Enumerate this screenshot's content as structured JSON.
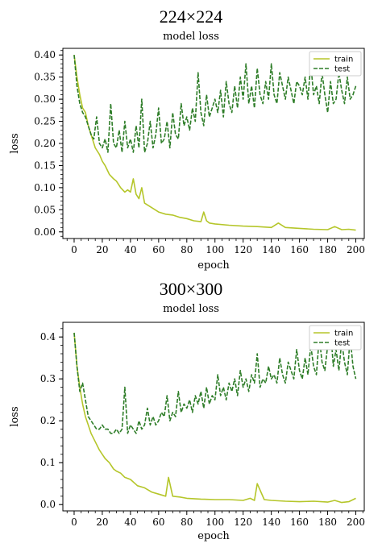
{
  "panels": [
    {
      "heading": "224×224"
    },
    {
      "heading": "300×300"
    }
  ],
  "chart_data": [
    {
      "type": "line",
      "title": "model loss",
      "xlabel": "epoch",
      "ylabel": "loss",
      "xlim": [
        -8,
        206
      ],
      "ylim": [
        -0.015,
        0.415
      ],
      "xticks": [
        0,
        20,
        40,
        60,
        80,
        100,
        120,
        140,
        160,
        180,
        200
      ],
      "yticks": [
        0.0,
        0.05,
        0.1,
        0.15,
        0.2,
        0.25,
        0.3,
        0.35,
        0.4
      ],
      "ytick_labels": [
        "0.00",
        "0.05",
        "0.10",
        "0.15",
        "0.20",
        "0.25",
        "0.30",
        "0.35",
        "0.40"
      ],
      "legend_position": "top-right",
      "grid": false,
      "series": [
        {
          "name": "train",
          "color": "#b5c62a",
          "style": "solid",
          "x": [
            0,
            2,
            4,
            6,
            8,
            10,
            12,
            15,
            18,
            20,
            22,
            25,
            28,
            30,
            33,
            36,
            38,
            40,
            42,
            44,
            46,
            48,
            50,
            55,
            60,
            65,
            70,
            75,
            80,
            85,
            90,
            92,
            94,
            96,
            100,
            110,
            120,
            130,
            140,
            145,
            150,
            160,
            170,
            180,
            185,
            190,
            195,
            200
          ],
          "y": [
            0.4,
            0.35,
            0.31,
            0.28,
            0.27,
            0.24,
            0.22,
            0.19,
            0.175,
            0.16,
            0.15,
            0.13,
            0.12,
            0.115,
            0.1,
            0.09,
            0.095,
            0.09,
            0.12,
            0.085,
            0.075,
            0.1,
            0.065,
            0.055,
            0.045,
            0.04,
            0.038,
            0.033,
            0.03,
            0.025,
            0.023,
            0.045,
            0.025,
            0.02,
            0.018,
            0.015,
            0.013,
            0.012,
            0.01,
            0.02,
            0.01,
            0.008,
            0.006,
            0.005,
            0.012,
            0.005,
            0.006,
            0.004
          ]
        },
        {
          "name": "test",
          "color": "#2e7d28",
          "style": "dashed",
          "x": [
            0,
            2,
            4,
            6,
            8,
            10,
            12,
            14,
            16,
            18,
            20,
            22,
            24,
            26,
            28,
            30,
            32,
            34,
            36,
            38,
            40,
            42,
            44,
            46,
            48,
            50,
            52,
            54,
            56,
            58,
            60,
            62,
            64,
            66,
            68,
            70,
            72,
            74,
            76,
            78,
            80,
            82,
            84,
            86,
            88,
            90,
            92,
            94,
            96,
            98,
            100,
            102,
            104,
            106,
            108,
            110,
            112,
            114,
            116,
            118,
            120,
            122,
            124,
            126,
            128,
            130,
            132,
            134,
            136,
            138,
            140,
            142,
            144,
            146,
            148,
            150,
            152,
            154,
            156,
            158,
            160,
            162,
            164,
            166,
            168,
            170,
            172,
            174,
            176,
            178,
            180,
            182,
            184,
            186,
            188,
            190,
            192,
            194,
            196,
            198,
            200
          ],
          "y": [
            0.4,
            0.33,
            0.29,
            0.27,
            0.26,
            0.24,
            0.22,
            0.21,
            0.26,
            0.2,
            0.19,
            0.21,
            0.18,
            0.29,
            0.2,
            0.19,
            0.23,
            0.18,
            0.25,
            0.19,
            0.21,
            0.18,
            0.24,
            0.19,
            0.3,
            0.18,
            0.2,
            0.25,
            0.19,
            0.22,
            0.28,
            0.2,
            0.21,
            0.25,
            0.19,
            0.27,
            0.22,
            0.21,
            0.29,
            0.24,
            0.26,
            0.23,
            0.28,
            0.25,
            0.36,
            0.27,
            0.24,
            0.31,
            0.26,
            0.28,
            0.3,
            0.27,
            0.32,
            0.26,
            0.34,
            0.29,
            0.27,
            0.33,
            0.28,
            0.35,
            0.3,
            0.38,
            0.29,
            0.33,
            0.28,
            0.37,
            0.31,
            0.29,
            0.34,
            0.3,
            0.38,
            0.31,
            0.29,
            0.36,
            0.33,
            0.3,
            0.35,
            0.32,
            0.29,
            0.34,
            0.33,
            0.31,
            0.35,
            0.3,
            0.38,
            0.31,
            0.33,
            0.29,
            0.36,
            0.31,
            0.27,
            0.34,
            0.29,
            0.3,
            0.36,
            0.32,
            0.29,
            0.35,
            0.3,
            0.31,
            0.33
          ]
        }
      ]
    },
    {
      "type": "line",
      "title": "model loss",
      "xlabel": "epoch",
      "ylabel": "loss",
      "xlim": [
        -8,
        206
      ],
      "ylim": [
        -0.015,
        0.435
      ],
      "xticks": [
        0,
        20,
        40,
        60,
        80,
        100,
        120,
        140,
        160,
        180,
        200
      ],
      "yticks": [
        0.0,
        0.1,
        0.2,
        0.3,
        0.4
      ],
      "ytick_labels": [
        "0.0",
        "0.1",
        "0.2",
        "0.3",
        "0.4"
      ],
      "legend_position": "top-right",
      "grid": false,
      "series": [
        {
          "name": "train",
          "color": "#b5c62a",
          "style": "solid",
          "x": [
            0,
            2,
            4,
            6,
            8,
            10,
            12,
            15,
            18,
            20,
            22,
            25,
            28,
            30,
            33,
            36,
            40,
            45,
            50,
            55,
            60,
            65,
            67,
            70,
            75,
            80,
            90,
            100,
            110,
            120,
            125,
            128,
            130,
            135,
            140,
            150,
            160,
            170,
            180,
            185,
            190,
            195,
            200
          ],
          "y": [
            0.41,
            0.33,
            0.28,
            0.24,
            0.21,
            0.19,
            0.17,
            0.15,
            0.13,
            0.12,
            0.11,
            0.1,
            0.085,
            0.08,
            0.075,
            0.065,
            0.06,
            0.045,
            0.04,
            0.03,
            0.025,
            0.02,
            0.065,
            0.02,
            0.018,
            0.015,
            0.013,
            0.012,
            0.012,
            0.01,
            0.015,
            0.01,
            0.05,
            0.012,
            0.01,
            0.008,
            0.007,
            0.008,
            0.006,
            0.01,
            0.005,
            0.007,
            0.015
          ]
        },
        {
          "name": "test",
          "color": "#2e7d28",
          "style": "dashed",
          "x": [
            0,
            2,
            4,
            6,
            8,
            10,
            12,
            14,
            16,
            18,
            20,
            22,
            24,
            26,
            28,
            30,
            32,
            34,
            36,
            38,
            40,
            42,
            44,
            46,
            48,
            50,
            52,
            54,
            56,
            58,
            60,
            62,
            64,
            66,
            68,
            70,
            72,
            74,
            76,
            78,
            80,
            82,
            84,
            86,
            88,
            90,
            92,
            94,
            96,
            98,
            100,
            102,
            104,
            106,
            108,
            110,
            112,
            114,
            116,
            118,
            120,
            122,
            124,
            126,
            128,
            130,
            132,
            134,
            136,
            138,
            140,
            142,
            144,
            146,
            148,
            150,
            152,
            154,
            156,
            158,
            160,
            162,
            164,
            166,
            168,
            170,
            172,
            174,
            176,
            178,
            180,
            182,
            184,
            186,
            188,
            190,
            192,
            194,
            196,
            198,
            200
          ],
          "y": [
            0.41,
            0.33,
            0.27,
            0.29,
            0.25,
            0.21,
            0.2,
            0.19,
            0.18,
            0.18,
            0.19,
            0.18,
            0.18,
            0.17,
            0.17,
            0.18,
            0.17,
            0.18,
            0.28,
            0.17,
            0.19,
            0.18,
            0.17,
            0.2,
            0.18,
            0.19,
            0.23,
            0.19,
            0.21,
            0.19,
            0.2,
            0.22,
            0.21,
            0.26,
            0.2,
            0.22,
            0.21,
            0.27,
            0.22,
            0.24,
            0.23,
            0.25,
            0.22,
            0.26,
            0.24,
            0.27,
            0.23,
            0.28,
            0.24,
            0.26,
            0.25,
            0.31,
            0.26,
            0.28,
            0.25,
            0.29,
            0.27,
            0.3,
            0.26,
            0.32,
            0.28,
            0.3,
            0.27,
            0.31,
            0.29,
            0.36,
            0.28,
            0.3,
            0.29,
            0.33,
            0.3,
            0.31,
            0.29,
            0.35,
            0.31,
            0.29,
            0.34,
            0.32,
            0.3,
            0.37,
            0.32,
            0.3,
            0.35,
            0.31,
            0.38,
            0.33,
            0.31,
            0.4,
            0.34,
            0.32,
            0.38,
            0.42,
            0.33,
            0.37,
            0.32,
            0.39,
            0.34,
            0.31,
            0.4,
            0.33,
            0.3
          ]
        }
      ]
    }
  ]
}
